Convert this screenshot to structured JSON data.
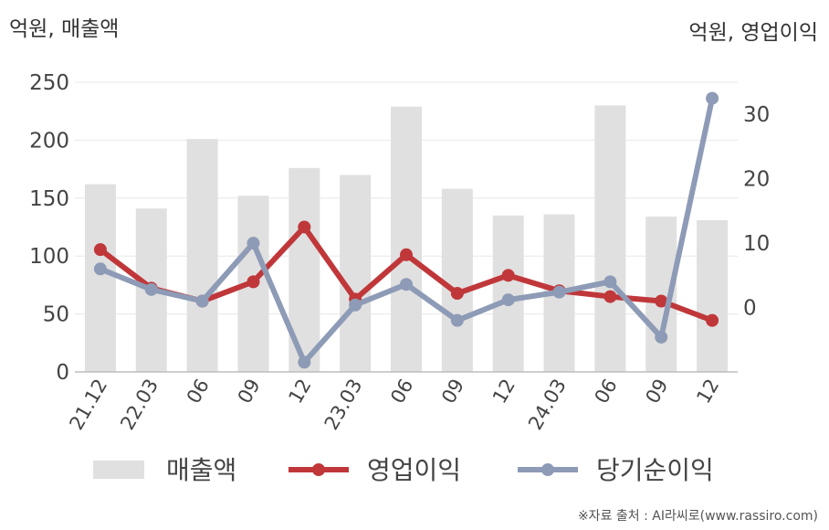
{
  "chart_data": {
    "type": "bar+line",
    "left_axis_title": "억원, 매출액",
    "right_axis_title": "억원, 영업이익",
    "categories": [
      "21.12",
      "22.03",
      "06",
      "09",
      "12",
      "23.03",
      "06",
      "09",
      "12",
      "24.03",
      "06",
      "09",
      "12"
    ],
    "left_ticks": [
      0,
      50,
      100,
      150,
      200,
      250
    ],
    "right_ticks": [
      0,
      10,
      20,
      30
    ],
    "ylim_left": [
      0,
      250
    ],
    "ylim_right": [
      -10,
      35
    ],
    "series": [
      {
        "name": "매출액",
        "type": "bar",
        "axis": "left",
        "color": "#e0e0e0",
        "values": [
          162,
          141,
          201,
          152,
          176,
          170,
          229,
          158,
          135,
          136,
          230,
          134,
          131
        ]
      },
      {
        "name": "영업이익",
        "type": "line",
        "axis": "right",
        "color": "#c0373a",
        "values": [
          9,
          3,
          1,
          4,
          12.5,
          1.3,
          8.2,
          2.2,
          5,
          2.6,
          1.7,
          1,
          -2
        ]
      },
      {
        "name": "당기순이익",
        "type": "line",
        "axis": "right",
        "color": "#8e9bb6",
        "values": [
          6,
          2.8,
          1,
          10,
          -8.5,
          0.4,
          3.6,
          -2,
          1.2,
          2.4,
          4,
          -4.6,
          32.5
        ]
      }
    ],
    "grid": true,
    "legend_position": "bottom"
  },
  "source": "※자료 출처 : AI라씨로(www.rassiro.com)"
}
